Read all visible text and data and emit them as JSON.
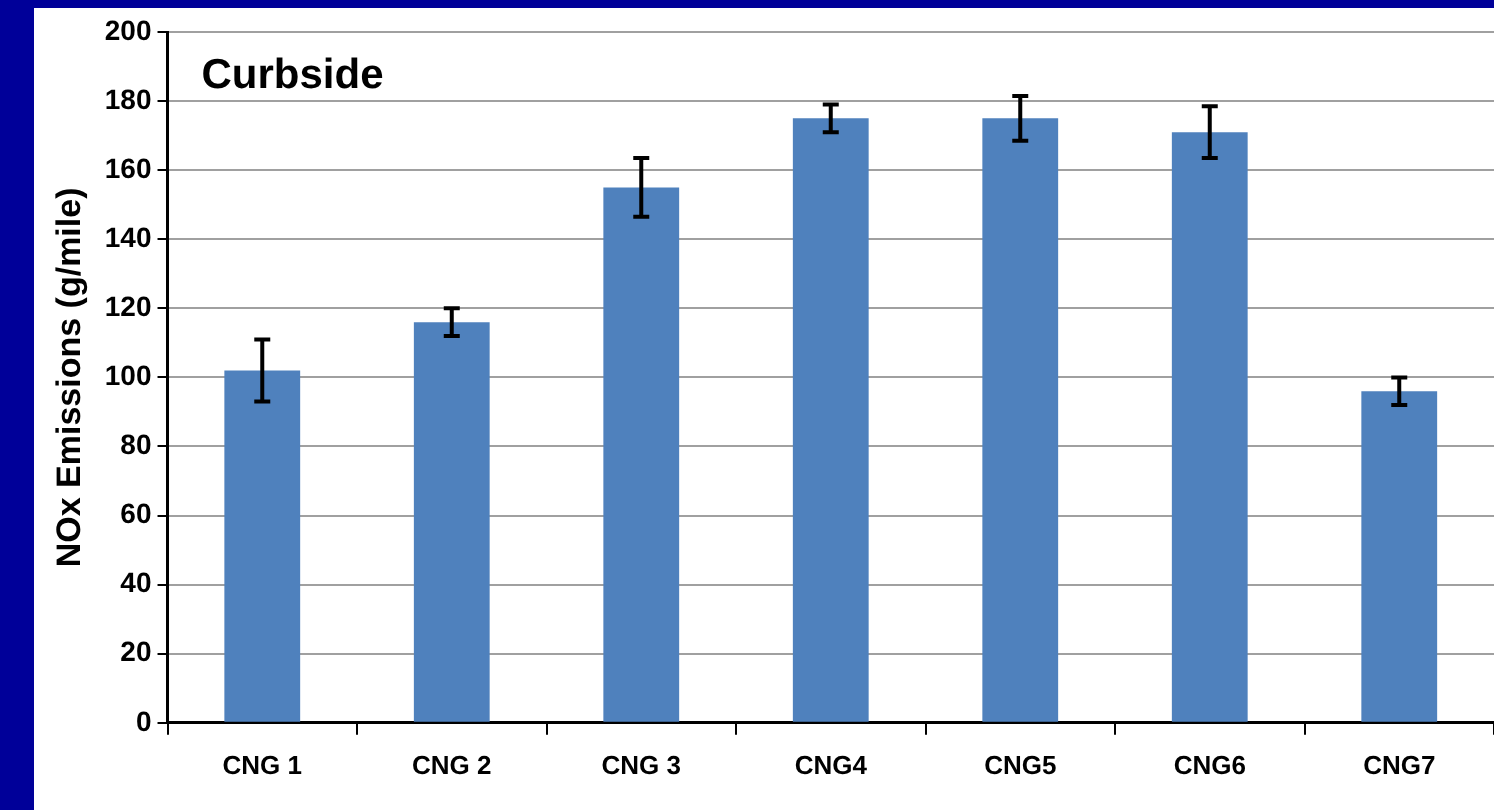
{
  "chart_data": {
    "type": "bar",
    "title": "Curbside",
    "ylabel": "NOx Emissions (g/mile)",
    "categories": [
      "CNG 1",
      "CNG 2",
      "CNG 3",
      "CNG4",
      "CNG5",
      "CNG6",
      "CNG7"
    ],
    "values": [
      102,
      116,
      155,
      175,
      175,
      171,
      96
    ],
    "errors": [
      9,
      4,
      8.5,
      4,
      6.5,
      7.5,
      4
    ],
    "color": "#4f81bd",
    "ylim": [
      0,
      200
    ],
    "yticks": [
      0,
      20,
      40,
      60,
      80,
      100,
      120,
      140,
      160,
      180,
      200
    ],
    "grid": "y"
  }
}
